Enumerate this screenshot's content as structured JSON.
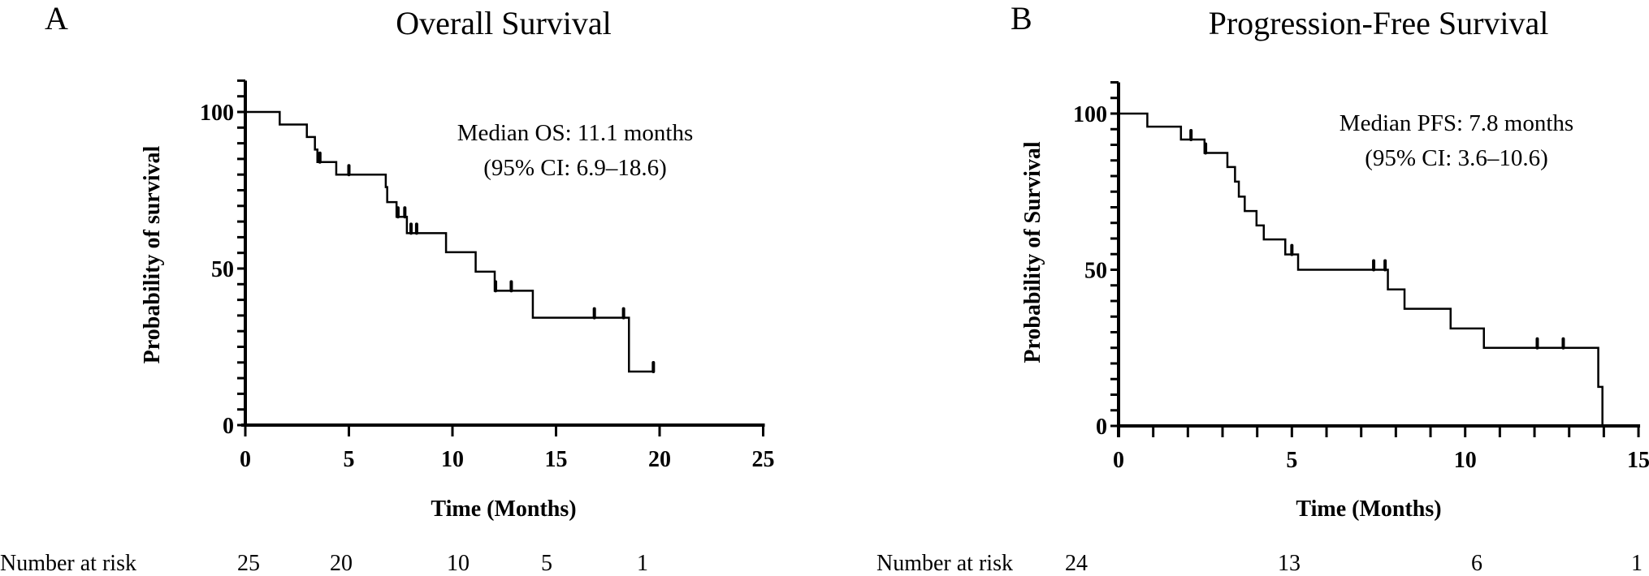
{
  "chart_data": [
    {
      "type": "line",
      "panel_label": "A",
      "title": "Overall Survival",
      "xlabel": "Time (Months)",
      "ylabel": "Probability of survival",
      "xlim": [
        0,
        25
      ],
      "ylim": [
        0,
        110
      ],
      "xticks": [
        "0",
        "5",
        "10",
        "15",
        "20",
        "25"
      ],
      "yticks": [
        "0",
        "50",
        "100"
      ],
      "annotation": [
        "Median OS: 11.1 months",
        "(95% CI: 6.9–18.6)"
      ],
      "steps": [
        [
          0,
          100
        ],
        [
          1.66,
          96
        ],
        [
          2.97,
          92
        ],
        [
          3.36,
          88
        ],
        [
          3.48,
          84
        ],
        [
          4.39,
          80
        ],
        [
          6.78,
          76
        ],
        [
          6.85,
          71.2
        ],
        [
          7.3,
          66.5
        ],
        [
          7.8,
          61.3
        ],
        [
          9.69,
          55.2
        ],
        [
          11.12,
          49
        ],
        [
          12.04,
          42.9
        ],
        [
          13.88,
          34.3
        ],
        [
          18.52,
          17.1
        ]
      ],
      "end_time": 19.7,
      "censored_times": [
        3.6,
        5.0,
        7.37,
        7.7,
        8.0,
        8.27,
        12.08,
        12.84,
        16.85,
        18.26,
        19.7
      ],
      "number_at_risk_label": "Number at risk",
      "number_at_risk": [
        "25",
        "20",
        "10",
        "5",
        "1"
      ],
      "grid": false,
      "color": "#000000"
    },
    {
      "type": "line",
      "panel_label": "B",
      "title": "Progression-Free Survival",
      "xlabel": "Time (Months)",
      "ylabel": "Probability of Survival",
      "xlim": [
        0,
        15
      ],
      "ylim": [
        0,
        110
      ],
      "xticks": [
        "0",
        "5",
        "10",
        "15"
      ],
      "yticks": [
        "0",
        "50",
        "100"
      ],
      "annotation": [
        "Median PFS: 7.8 months",
        "(95% CI: 3.6–10.6)"
      ],
      "steps": [
        [
          0,
          100
        ],
        [
          0.83,
          95.8
        ],
        [
          1.8,
          91.7
        ],
        [
          2.48,
          87.4
        ],
        [
          3.14,
          82.9
        ],
        [
          3.36,
          78.2
        ],
        [
          3.47,
          73.4
        ],
        [
          3.64,
          68.8
        ],
        [
          3.98,
          64.2
        ],
        [
          4.19,
          59.7
        ],
        [
          4.81,
          54.9
        ],
        [
          5.18,
          50
        ],
        [
          7.77,
          43.7
        ],
        [
          8.25,
          37.5
        ],
        [
          9.58,
          31.2
        ],
        [
          10.54,
          25
        ],
        [
          13.84,
          12.5
        ],
        [
          13.96,
          0
        ]
      ],
      "end_time": 13.96,
      "censored_times": [
        2.09,
        2.51,
        5.0,
        7.36,
        7.69,
        12.08,
        12.83
      ],
      "number_at_risk_label": "Number at risk",
      "number_at_risk": [
        "24",
        "13",
        "6",
        "1"
      ],
      "grid": false,
      "color": "#000000"
    }
  ]
}
